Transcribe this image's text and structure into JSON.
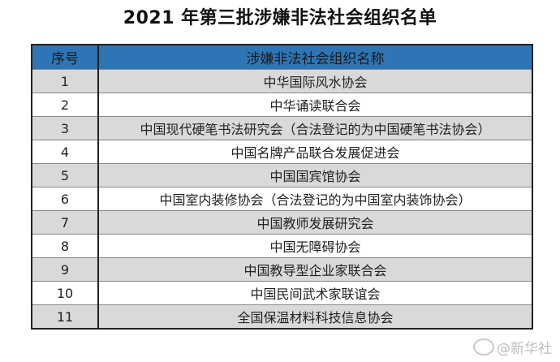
{
  "title": "2021 年第三批涉嫌非法社会组织名单",
  "table": {
    "headers": [
      "序号",
      "涉嫌非法社会组织名称"
    ],
    "header_color": "#2e75b6",
    "rows": [
      {
        "no": "1",
        "name": "中华国际风水协会"
      },
      {
        "no": "2",
        "name": "中华诵读联合会"
      },
      {
        "no": "3",
        "name": "中国现代硬笔书法研究会（合法登记的为中国硬笔书法协会）"
      },
      {
        "no": "4",
        "name": "中国名牌产品联合发展促进会"
      },
      {
        "no": "5",
        "name": "中国国宾馆协会"
      },
      {
        "no": "6",
        "name": "中国室内装修协会（合法登记的为中国室内装饰协会）"
      },
      {
        "no": "7",
        "name": "中国教师发展研究会"
      },
      {
        "no": "8",
        "name": "中国无障碍协会"
      },
      {
        "no": "9",
        "name": "中国教导型企业家联合会"
      },
      {
        "no": "10",
        "name": "中国民间武术家联谊会"
      },
      {
        "no": "11",
        "name": "全国保温材料科技信息协会"
      }
    ]
  },
  "watermark": {
    "icon": "weibo-icon",
    "text": "@新华社"
  }
}
